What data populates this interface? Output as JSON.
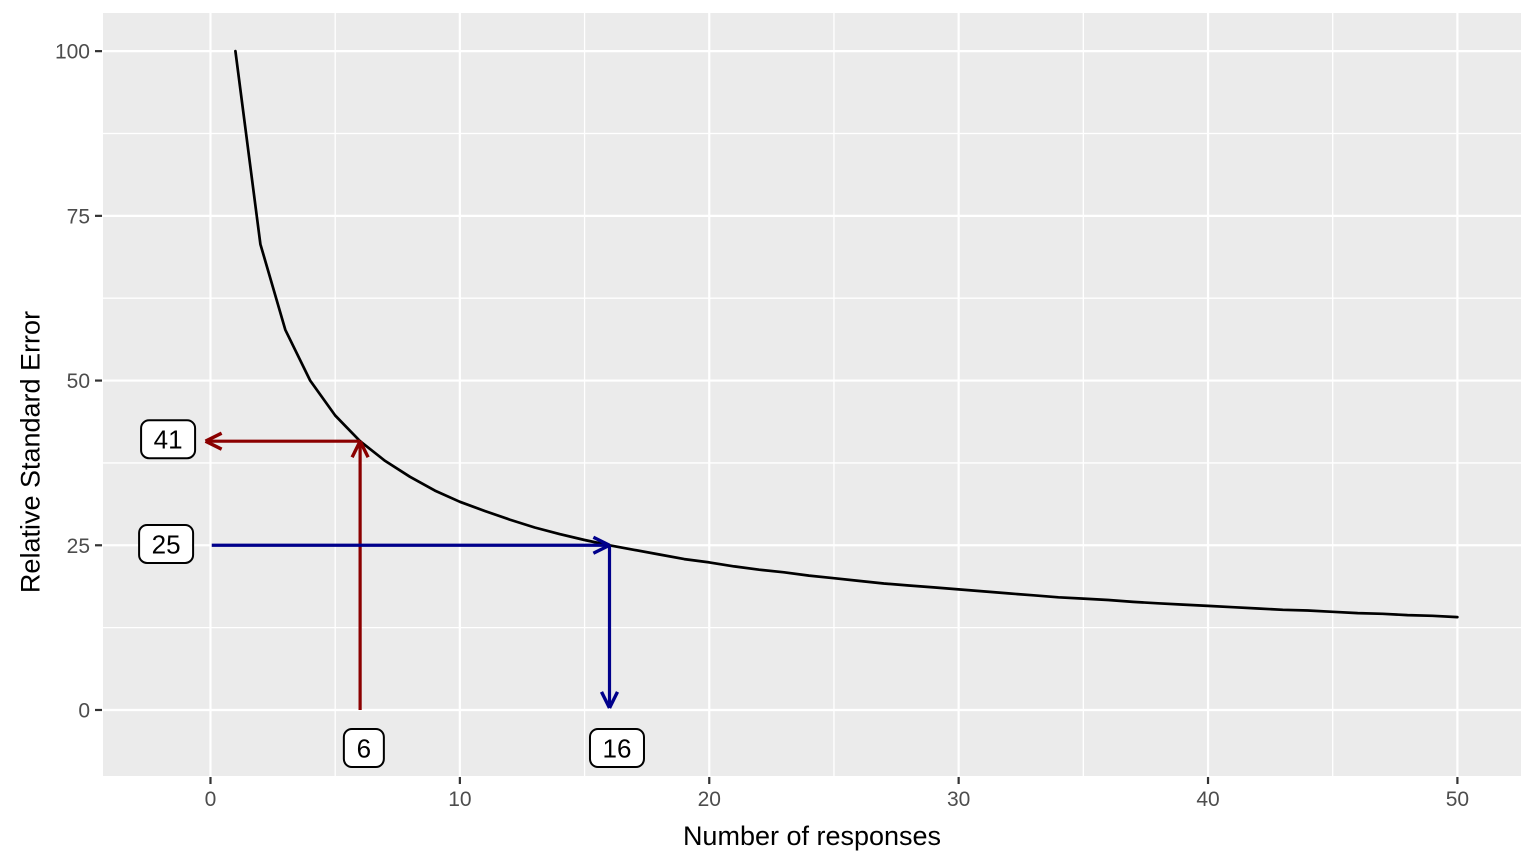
{
  "figure": {
    "background": "#FFFFFF"
  },
  "chart_data": {
    "type": "line",
    "title": "",
    "xlabel": "Number of responses",
    "ylabel": "Relative Standard Error",
    "x_ticks": [
      0,
      10,
      20,
      30,
      40,
      50
    ],
    "y_ticks": [
      0,
      25,
      50,
      75,
      100
    ],
    "x_minor_gridlines": [
      5,
      15,
      25,
      35,
      45
    ],
    "y_minor_gridlines": [
      12.5,
      37.5,
      62.5,
      87.5
    ],
    "xlim": [
      -4.31,
      52.55
    ],
    "ylim": [
      -10.02,
      105.79
    ],
    "grid": "major-and-minor",
    "legend_position": "none",
    "panel_background": "#EBEBEB",
    "gridline_color": "#FFFFFF",
    "tick_color": "#333333",
    "tick_label_color": "#4D4D4D",
    "series": [
      {
        "name": "relative-standard-error-curve",
        "color": "#000000",
        "x": [
          1,
          2,
          3,
          4,
          5,
          6,
          7,
          8,
          9,
          10,
          11,
          12,
          13,
          14,
          15,
          16,
          17,
          18,
          19,
          20,
          21,
          22,
          23,
          24,
          25,
          26,
          27,
          28,
          29,
          30,
          31,
          32,
          33,
          34,
          35,
          36,
          37,
          38,
          39,
          40,
          41,
          42,
          43,
          44,
          45,
          46,
          47,
          48,
          49,
          50
        ],
        "y": [
          100,
          70.7,
          57.7,
          50,
          44.7,
          40.8,
          37.8,
          35.4,
          33.3,
          31.6,
          30.2,
          28.9,
          27.7,
          26.7,
          25.8,
          25,
          24.3,
          23.6,
          22.9,
          22.4,
          21.8,
          21.3,
          20.9,
          20.4,
          20,
          19.6,
          19.2,
          18.9,
          18.6,
          18.3,
          18,
          17.7,
          17.4,
          17.1,
          16.9,
          16.7,
          16.4,
          16.2,
          16,
          15.8,
          15.6,
          15.4,
          15.2,
          15.1,
          14.9,
          14.7,
          14.6,
          14.4,
          14.3,
          14.1
        ]
      }
    ],
    "annotations": {
      "arrows": [
        {
          "name": "arrow-up-from-x6",
          "color": "#8B0000",
          "from": [
            6,
            0
          ],
          "to": [
            6,
            40.8
          ],
          "head": "end"
        },
        {
          "name": "arrow-left-to-y41",
          "color": "#8B0000",
          "from": [
            6,
            40.8
          ],
          "to": [
            -0.2,
            40.8
          ],
          "head": "end"
        },
        {
          "name": "arrow-right-from-y25",
          "color": "#00008B",
          "from": [
            0.05,
            25
          ],
          "to": [
            16,
            25
          ],
          "head": "end"
        },
        {
          "name": "arrow-down-to-x16",
          "color": "#00008B",
          "from": [
            16,
            25
          ],
          "to": [
            16,
            0.3
          ],
          "head": "end"
        }
      ],
      "labels": [
        {
          "text": "41",
          "x": -1.7,
          "y": 41.1
        },
        {
          "text": "25",
          "x": -1.78,
          "y": 25.2
        },
        {
          "text": "6",
          "x": 6.15,
          "y": -5.77
        },
        {
          "text": "16",
          "x": 16.3,
          "y": -5.77
        }
      ],
      "label_style": {
        "fill": "#FFFFFF",
        "border": "#000000",
        "text_color": "#000000"
      }
    }
  }
}
